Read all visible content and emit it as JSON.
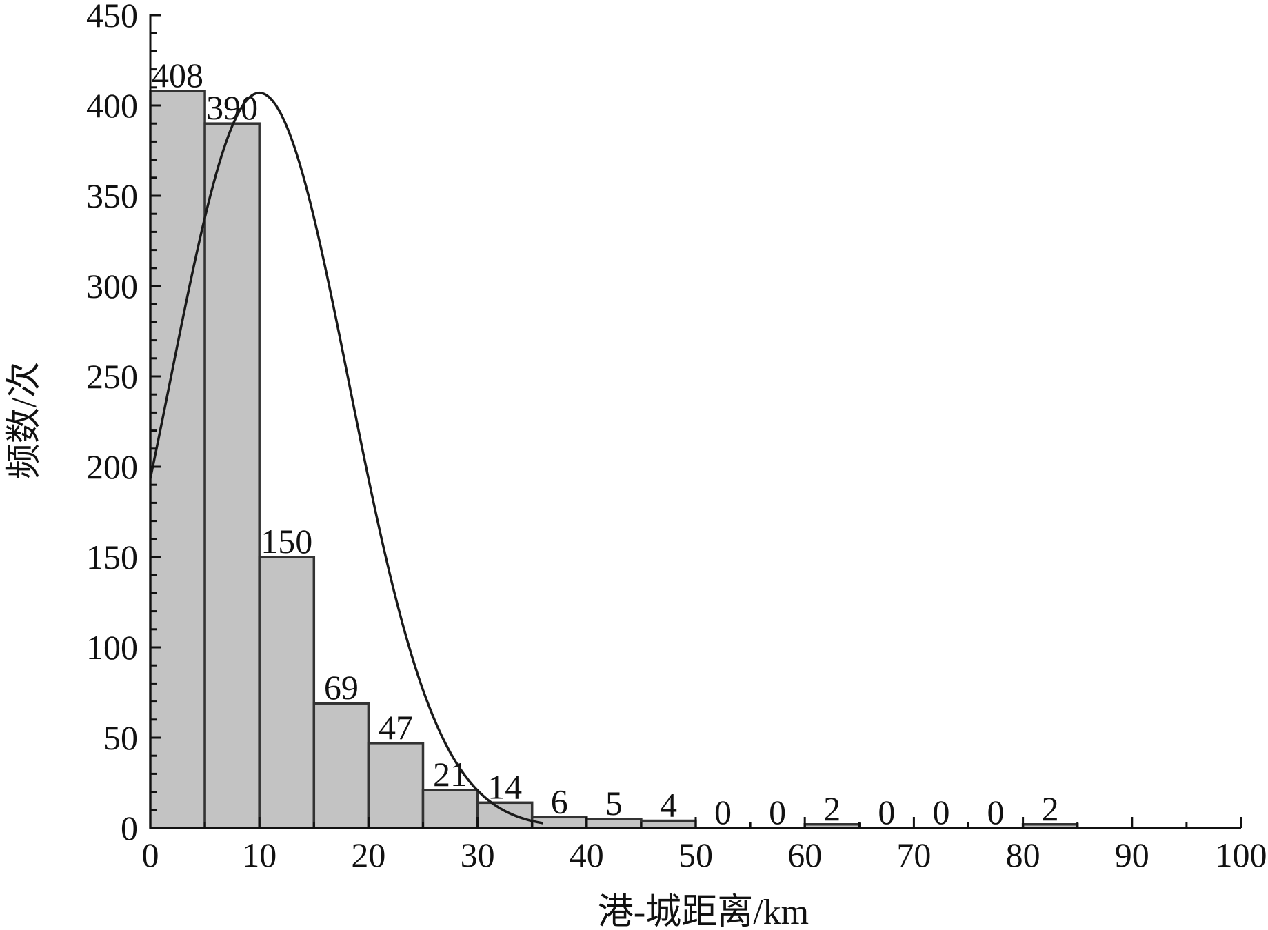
{
  "chart_data": {
    "type": "bar",
    "subtype": "histogram-with-normal-fit",
    "bin_width": 5,
    "bins": [
      {
        "x0": 0,
        "x1": 5,
        "value": 408,
        "label": "408"
      },
      {
        "x0": 5,
        "x1": 10,
        "value": 390,
        "label": "390"
      },
      {
        "x0": 10,
        "x1": 15,
        "value": 150,
        "label": "150"
      },
      {
        "x0": 15,
        "x1": 20,
        "value": 69,
        "label": "69"
      },
      {
        "x0": 20,
        "x1": 25,
        "value": 47,
        "label": "47"
      },
      {
        "x0": 25,
        "x1": 30,
        "value": 21,
        "label": "21"
      },
      {
        "x0": 30,
        "x1": 35,
        "value": 14,
        "label": "14"
      },
      {
        "x0": 35,
        "x1": 40,
        "value": 6,
        "label": "6"
      },
      {
        "x0": 40,
        "x1": 45,
        "value": 5,
        "label": "5"
      },
      {
        "x0": 45,
        "x1": 50,
        "value": 4,
        "label": "4"
      },
      {
        "x0": 50,
        "x1": 55,
        "value": 0,
        "label": "0"
      },
      {
        "x0": 55,
        "x1": 60,
        "value": 0,
        "label": "0"
      },
      {
        "x0": 60,
        "x1": 65,
        "value": 2,
        "label": "2"
      },
      {
        "x0": 65,
        "x1": 70,
        "value": 0,
        "label": "0"
      },
      {
        "x0": 70,
        "x1": 75,
        "value": 0,
        "label": "0"
      },
      {
        "x0": 75,
        "x1": 80,
        "value": 0,
        "label": "0"
      },
      {
        "x0": 80,
        "x1": 85,
        "value": 2,
        "label": "2"
      }
    ],
    "fit_curve": {
      "type": "normal",
      "peak_x": 10,
      "peak_y": 407,
      "sigma": 8.2,
      "x_end": 36
    },
    "xlabel": "港-城距离/km",
    "ylabel": "频数/次",
    "xlim": [
      0,
      100
    ],
    "ylim": [
      0,
      450
    ],
    "xticks": [
      "0",
      "10",
      "20",
      "30",
      "40",
      "50",
      "60",
      "70",
      "80",
      "90",
      "100"
    ],
    "yticks": [
      "0",
      "50",
      "100",
      "150",
      "200",
      "250",
      "300",
      "350",
      "400",
      "450"
    ],
    "grid": false,
    "colors": {
      "bar_fill": "#c3c3c3",
      "bar_stroke": "#333333",
      "curve": "#1a1a1a",
      "axis": "#111111"
    }
  }
}
